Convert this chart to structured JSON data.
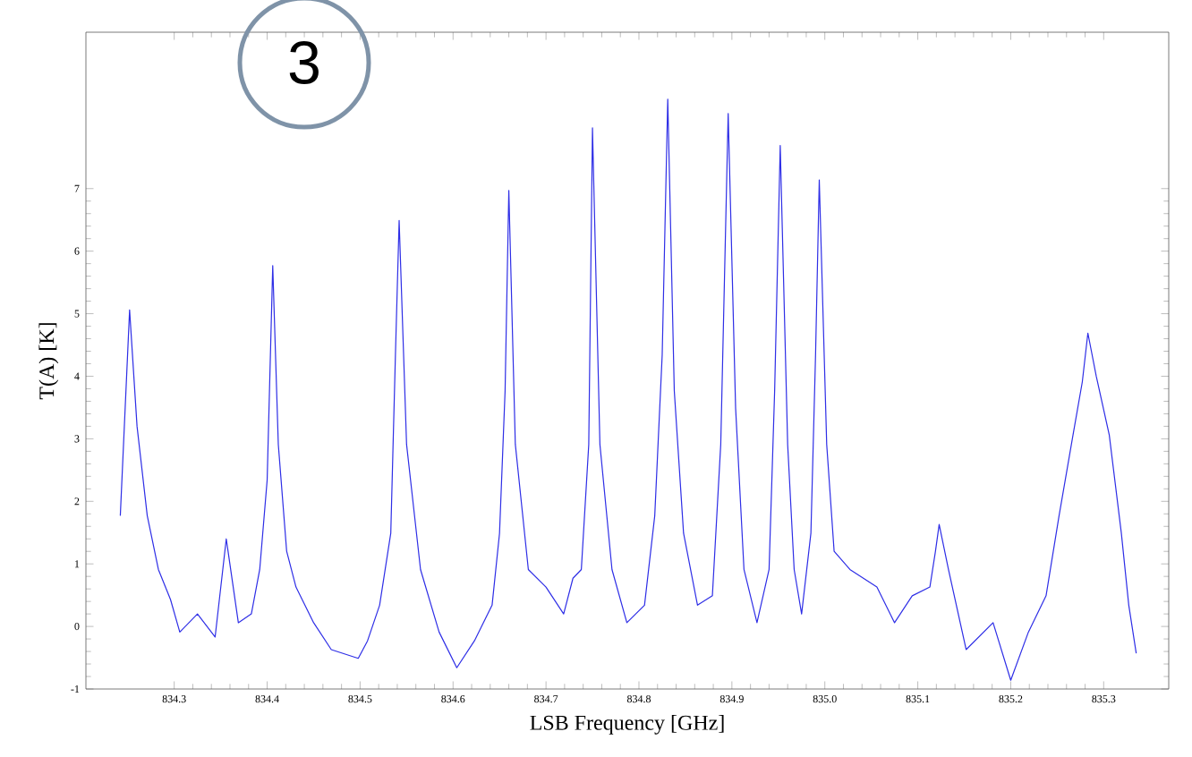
{
  "chart_data": {
    "type": "line",
    "xlabel": "LSB Frequency [GHz]",
    "ylabel": "T(A) [K]",
    "annotations": [
      "3"
    ],
    "xlim": [
      834.205,
      835.37
    ],
    "ylim": [
      -1,
      9.5
    ],
    "xticks": [
      834.3,
      834.4,
      834.5,
      834.6,
      834.7,
      834.8,
      834.9,
      {
        "value": 835.0,
        "label": "835.0"
      },
      835.1,
      835.2,
      835.3
    ],
    "yticks": [
      -1,
      0,
      1,
      2,
      3,
      4,
      5,
      6,
      7
    ],
    "series": [
      {
        "color": "#2e2ee6",
        "x": [
          834.242,
          834.252,
          834.26,
          834.271,
          834.283,
          834.296,
          834.306,
          834.325,
          834.344,
          834.356,
          834.369,
          834.383,
          834.392,
          834.4,
          834.406,
          834.412,
          834.421,
          834.431,
          834.45,
          834.469,
          834.498,
          834.508,
          834.521,
          834.533,
          834.538,
          834.542,
          834.55,
          834.565,
          834.585,
          834.604,
          834.623,
          834.642,
          834.65,
          834.656,
          834.66,
          834.667,
          834.681,
          834.7,
          834.719,
          834.729,
          834.738,
          834.746,
          834.75,
          834.758,
          834.771,
          834.787,
          834.806,
          834.817,
          834.825,
          834.831,
          834.838,
          834.848,
          834.863,
          834.879,
          834.888,
          834.896,
          834.904,
          834.913,
          834.927,
          834.94,
          834.946,
          834.952,
          834.96,
          834.967,
          834.975,
          834.985,
          834.99,
          834.994,
          835.002,
          835.01,
          835.027,
          835.056,
          835.075,
          835.094,
          835.113,
          835.119,
          835.123,
          835.133,
          835.152,
          835.181,
          835.2,
          835.219,
          835.238,
          835.252,
          835.267,
          835.277,
          835.283,
          835.292,
          835.306,
          835.319,
          835.327,
          835.335
        ],
        "values": [
          1.77,
          5.06,
          3.2,
          1.77,
          0.91,
          0.43,
          -0.09,
          0.2,
          -0.17,
          1.4,
          0.06,
          0.2,
          0.91,
          2.34,
          5.77,
          2.91,
          1.2,
          0.63,
          0.06,
          -0.37,
          -0.51,
          -0.23,
          0.34,
          1.49,
          4.34,
          6.49,
          2.91,
          0.91,
          -0.09,
          -0.66,
          -0.23,
          0.34,
          1.49,
          3.77,
          6.97,
          2.91,
          0.91,
          0.63,
          0.2,
          0.77,
          0.91,
          2.91,
          7.97,
          2.91,
          0.91,
          0.06,
          0.34,
          1.77,
          4.34,
          8.43,
          3.77,
          1.49,
          0.34,
          0.49,
          2.91,
          8.2,
          3.49,
          0.91,
          0.06,
          0.91,
          3.77,
          7.69,
          2.91,
          0.91,
          0.2,
          1.49,
          4.34,
          7.14,
          2.91,
          1.2,
          0.91,
          0.63,
          0.06,
          0.49,
          0.63,
          1.2,
          1.63,
          0.91,
          -0.37,
          0.06,
          -0.86,
          -0.09,
          0.49,
          1.77,
          3.06,
          3.91,
          4.69,
          4.0,
          3.06,
          1.49,
          0.34,
          -0.43
        ]
      }
    ]
  }
}
